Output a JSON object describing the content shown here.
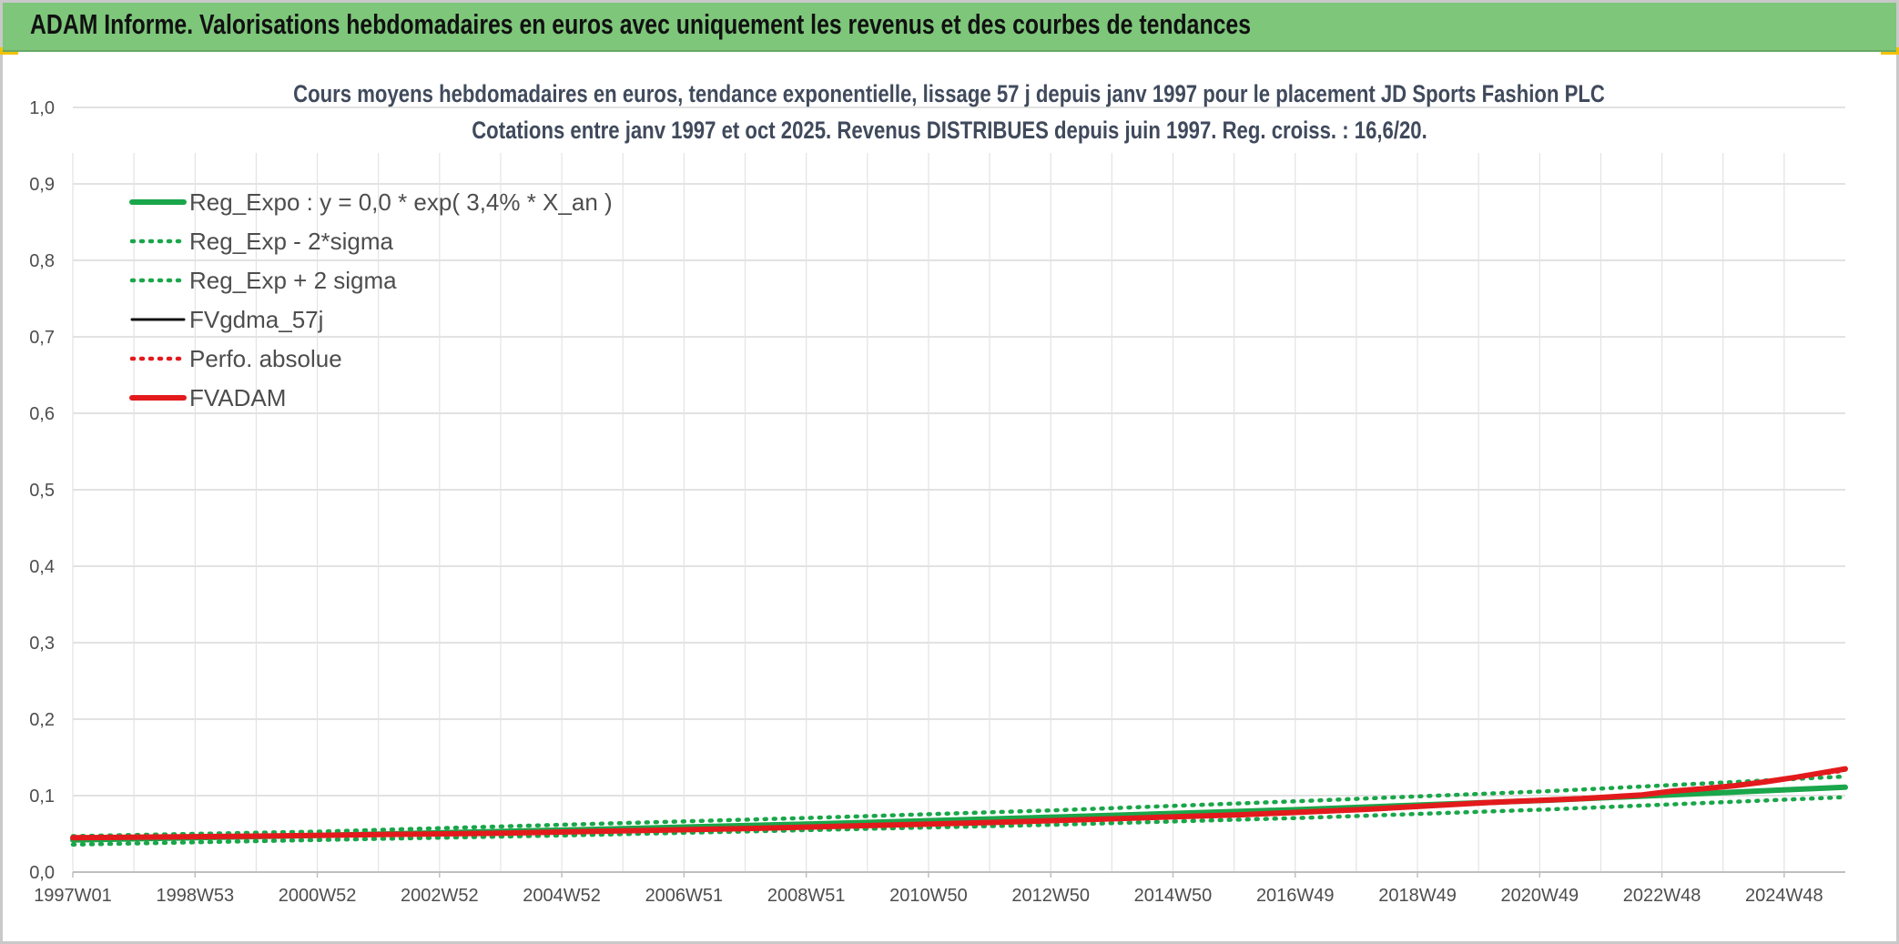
{
  "banner": {
    "title": "ADAM Informe. Valorisations hebdomadaires en euros avec uniquement les revenus et des courbes de tendances"
  },
  "chart_data": {
    "type": "line",
    "title": "Cours moyens hebdomadaires en euros, tendance exponentielle, lissage 57 j depuis janv 1997 pour le placement JD Sports Fashion PLC",
    "subtitle": "Cotations entre janv 1997 et oct 2025. Revenus DISTRIBUES depuis juin 1997. Reg. croiss. : 16,6/20.",
    "xlabel": "",
    "ylabel": "",
    "x_tick_labels": [
      "1997W01",
      "1998W53",
      "2000W52",
      "2002W52",
      "2004W52",
      "2006W51",
      "2008W51",
      "2010W50",
      "2012W50",
      "2014W50",
      "2016W49",
      "2018W49",
      "2020W49",
      "2022W48",
      "2024W48"
    ],
    "y_tick_labels": [
      "0,0",
      "0,1",
      "0,2",
      "0,3",
      "0,4",
      "0,5",
      "0,6",
      "0,7",
      "0,8",
      "0,9",
      "1,0"
    ],
    "ylim": [
      0,
      1.0
    ],
    "x_range_years": [
      1997.0,
      2025.8
    ],
    "grid": true,
    "legend_position": "top-left",
    "series": [
      {
        "name": "Reg_Expo : y = 0,0 * exp( 3,4% *  X_an )",
        "style": "solid-thick",
        "color": "#1aa64a",
        "x": [
          1997.0,
          2001.0,
          2005.0,
          2009.0,
          2013.0,
          2017.0,
          2021.0,
          2025.8
        ],
        "values": [
          0.042,
          0.048,
          0.055,
          0.063,
          0.072,
          0.082,
          0.094,
          0.111
        ]
      },
      {
        "name": "Reg_Exp - 2*sigma",
        "style": "dotted",
        "color": "#1aa64a",
        "x": [
          1997.0,
          2001.0,
          2005.0,
          2009.0,
          2013.0,
          2017.0,
          2021.0,
          2025.8
        ],
        "values": [
          0.036,
          0.042,
          0.048,
          0.055,
          0.062,
          0.071,
          0.082,
          0.098
        ]
      },
      {
        "name": "Reg_Exp + 2 sigma",
        "style": "dotted",
        "color": "#1aa64a",
        "x": [
          1997.0,
          2001.0,
          2005.0,
          2009.0,
          2013.0,
          2017.0,
          2021.0,
          2025.8
        ],
        "values": [
          0.047,
          0.053,
          0.062,
          0.071,
          0.081,
          0.093,
          0.106,
          0.125
        ]
      },
      {
        "name": "FVgdma_57j",
        "style": "solid",
        "color": "#111111",
        "x": [
          1997.0,
          2000.0,
          2004.0,
          2008.0,
          2012.0,
          2016.0,
          2020.0,
          2022.5,
          2023.5,
          2024.5,
          2025.8
        ],
        "values": [
          0.045,
          0.047,
          0.051,
          0.057,
          0.065,
          0.075,
          0.091,
          0.101,
          0.109,
          0.118,
          0.133
        ]
      },
      {
        "name": "Perfo. absolue",
        "style": "dotted",
        "color": "#e31a1c",
        "x": [
          1997.0,
          2000.0,
          2004.0,
          2008.0,
          2012.0,
          2016.0,
          2020.0,
          2022.5,
          2023.5,
          2024.5,
          2025.8
        ],
        "values": [
          0.045,
          0.047,
          0.051,
          0.057,
          0.065,
          0.075,
          0.091,
          0.101,
          0.109,
          0.118,
          0.133
        ]
      },
      {
        "name": "FVADAM",
        "style": "solid-thick",
        "color": "#e31a1c",
        "x": [
          1997.0,
          1998.5,
          2000.0,
          2002.0,
          2004.0,
          2006.0,
          2008.0,
          2010.0,
          2012.0,
          2014.0,
          2016.0,
          2018.0,
          2020.0,
          2021.5,
          2022.5,
          2023.0,
          2023.5,
          2024.0,
          2024.5,
          2025.0,
          2025.8
        ],
        "values": [
          0.045,
          0.046,
          0.047,
          0.049,
          0.051,
          0.054,
          0.057,
          0.061,
          0.065,
          0.07,
          0.075,
          0.082,
          0.091,
          0.096,
          0.101,
          0.106,
          0.109,
          0.113,
          0.118,
          0.124,
          0.135
        ]
      }
    ]
  }
}
